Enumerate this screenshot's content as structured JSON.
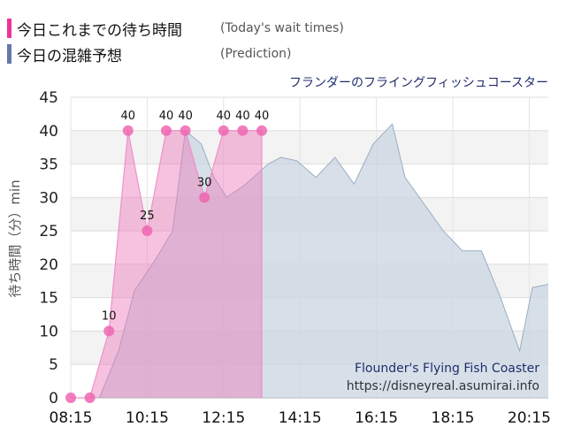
{
  "legend": {
    "today": {
      "label": "今日これまでの待ち時間",
      "sub": "(Today's wait times)",
      "color": "#ee3399"
    },
    "predict": {
      "label": "今日の混雑予想",
      "sub": "(Prediction)",
      "color": "#6677aa"
    }
  },
  "ride_title": "フランダーのフライングフィッシュコースター",
  "attribution": {
    "name_en": "Flounder's Flying Fish Coaster",
    "url": "https://disneyreal.asumirai.info"
  },
  "chart_data": {
    "type": "area",
    "ylabel": "待ち時間（分）min",
    "ylim": [
      0,
      45
    ],
    "yticks": [
      0,
      5,
      10,
      15,
      20,
      25,
      30,
      35,
      40,
      45
    ],
    "xticks": [
      "08:15",
      "10:15",
      "12:15",
      "14:15",
      "16:15",
      "18:15",
      "20:15"
    ],
    "xlim_minutes": [
      495,
      1245
    ],
    "series": [
      {
        "name": "(Today's wait times)",
        "color": "#ee3399",
        "points": [
          {
            "time": "08:15",
            "value": 0
          },
          {
            "time": "08:45",
            "value": 0
          },
          {
            "time": "09:15",
            "value": 10
          },
          {
            "time": "09:45",
            "value": 40
          },
          {
            "time": "10:15",
            "value": 25
          },
          {
            "time": "10:45",
            "value": 40
          },
          {
            "time": "11:15",
            "value": 40
          },
          {
            "time": "11:45",
            "value": 30
          },
          {
            "time": "12:15",
            "value": 40
          },
          {
            "time": "12:45",
            "value": 40
          },
          {
            "time": "13:15",
            "value": 40
          }
        ]
      },
      {
        "name": "(Prediction)",
        "color": "#b8c8d8",
        "points": [
          {
            "time": "08:15",
            "value": 0
          },
          {
            "time": "09:00",
            "value": 0
          },
          {
            "time": "09:30",
            "value": 7
          },
          {
            "time": "09:55",
            "value": 16
          },
          {
            "time": "10:30",
            "value": 21
          },
          {
            "time": "10:55",
            "value": 25
          },
          {
            "time": "11:15",
            "value": 40
          },
          {
            "time": "11:40",
            "value": 38
          },
          {
            "time": "12:00",
            "value": 33
          },
          {
            "time": "12:20",
            "value": 30
          },
          {
            "time": "12:50",
            "value": 32
          },
          {
            "time": "13:25",
            "value": 35
          },
          {
            "time": "13:45",
            "value": 36
          },
          {
            "time": "14:10",
            "value": 35.5
          },
          {
            "time": "14:40",
            "value": 33
          },
          {
            "time": "15:10",
            "value": 36
          },
          {
            "time": "15:40",
            "value": 32
          },
          {
            "time": "16:10",
            "value": 38
          },
          {
            "time": "16:40",
            "value": 41
          },
          {
            "time": "17:00",
            "value": 33
          },
          {
            "time": "17:30",
            "value": 29
          },
          {
            "time": "18:00",
            "value": 25
          },
          {
            "time": "18:30",
            "value": 22
          },
          {
            "time": "19:00",
            "value": 22
          },
          {
            "time": "19:30",
            "value": 15
          },
          {
            "time": "20:00",
            "value": 7
          },
          {
            "time": "20:20",
            "value": 16.5
          },
          {
            "time": "20:45",
            "value": 17
          }
        ]
      }
    ]
  }
}
